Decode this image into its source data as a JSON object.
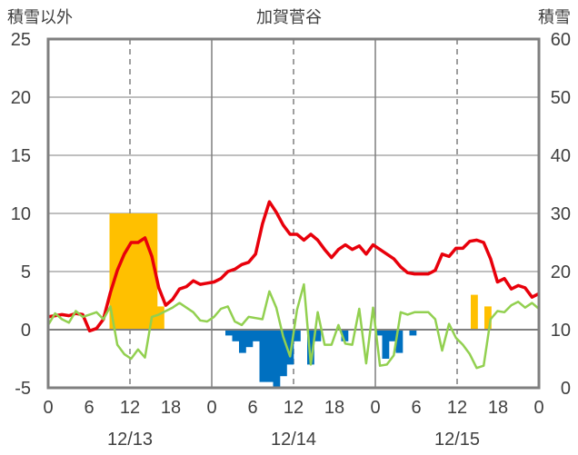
{
  "chart_data": {
    "type": "bar+line",
    "title": "加賀菅谷",
    "left_axis_label": "積雪以外",
    "right_axis_label": "積雪",
    "y_left": {
      "min": -5,
      "max": 25,
      "ticks": [
        -5,
        0,
        5,
        10,
        15,
        20,
        25
      ]
    },
    "y_right": {
      "min": 0,
      "max": 60,
      "ticks": [
        0,
        10,
        20,
        30,
        40,
        50,
        60
      ]
    },
    "x": {
      "hours_total": 72,
      "tick_labels": [
        "0",
        "6",
        "12",
        "18",
        "0",
        "6",
        "12",
        "18",
        "0",
        "6",
        "12",
        "18",
        "0"
      ]
    },
    "day_labels": [
      "12/13",
      "12/14",
      "12/15"
    ],
    "colors": {
      "red_line": "#e8000b",
      "green_line": "#92d050",
      "purple_line": "#7030a0",
      "orange_bar": "#ffc000",
      "blue_bar": "#0070c0",
      "frame": "#7f7f7f",
      "grid": "#7f7f7f"
    },
    "series": [
      {
        "type": "line",
        "color_key": "red_line",
        "axis": "left",
        "values": [
          1.1,
          1.2,
          1.3,
          1.2,
          1.4,
          1.3,
          -0.1,
          0.1,
          0.9,
          3.2,
          5.1,
          6.5,
          7.5,
          7.5,
          7.9,
          6.3,
          3.6,
          2.1,
          2.6,
          3.5,
          3.7,
          4.2,
          3.9,
          4.0,
          4.1,
          4.4,
          5.0,
          5.2,
          5.6,
          5.8,
          6.5,
          9.1,
          11.0,
          10.1,
          9.0,
          8.2,
          8.2,
          7.7,
          8.2,
          7.7,
          6.9,
          6.2,
          6.9,
          7.3,
          6.9,
          7.2,
          6.5,
          7.3,
          6.9,
          6.5,
          6.1,
          5.4,
          4.9,
          4.8,
          4.8,
          4.8,
          5.1,
          6.5,
          6.3,
          7.0,
          7.0,
          7.6,
          7.7,
          7.5,
          6.1,
          4.1,
          4.4,
          3.5,
          3.8,
          3.6,
          2.8,
          3.1
        ]
      },
      {
        "type": "line",
        "color_key": "green_line",
        "axis": "left",
        "values": [
          0.4,
          1.4,
          0.9,
          0.6,
          1.6,
          1.1,
          1.3,
          1.5,
          0.9,
          2.0,
          -1.3,
          -2.1,
          -2.5,
          -1.7,
          -2.4,
          1.1,
          1.3,
          1.6,
          1.9,
          2.3,
          1.9,
          1.5,
          0.8,
          0.7,
          1.1,
          1.8,
          2.0,
          0.7,
          0.4,
          1.1,
          1.0,
          0.9,
          3.3,
          1.9,
          -0.6,
          -2.3,
          1.7,
          3.9,
          -3.0,
          1.5,
          -1.3,
          -1.3,
          0.4,
          -1.2,
          -1.3,
          1.8,
          -2.9,
          1.9,
          -3.1,
          -3.0,
          -2.2,
          1.5,
          1.3,
          1.5,
          1.5,
          1.5,
          0.9,
          -1.8,
          0.5,
          -0.7,
          -1.3,
          -2.1,
          -3.3,
          -3.1,
          0.9,
          1.6,
          1.5,
          2.1,
          2.4,
          1.9,
          2.3,
          1.8
        ]
      },
      {
        "type": "line",
        "color_key": "purple_line",
        "axis": "left",
        "values": [
          -5,
          -5,
          -5,
          -5,
          -5,
          -5,
          -5,
          -5,
          -5,
          -5,
          -5,
          -5,
          -5,
          -5,
          -5,
          -5,
          -5,
          -5,
          -5,
          -5,
          -5,
          -5,
          -5,
          -5,
          -5,
          -5,
          -5,
          -5,
          -5,
          -5,
          -5,
          -5,
          -5,
          -5,
          -5,
          -5,
          -5,
          -5,
          -5,
          -5,
          -5,
          -5,
          -5,
          -5,
          -5,
          -5,
          -5,
          -5,
          -5,
          -5,
          -5,
          -5,
          -5,
          -5,
          -5,
          -5,
          -5,
          -5,
          -5,
          -5,
          -5,
          -5,
          -5,
          -5,
          -5,
          -5,
          -5,
          -5,
          -5,
          -5,
          -5,
          -5
        ]
      },
      {
        "type": "bar",
        "color_key": "orange_bar",
        "axis": "left",
        "values": [
          0,
          0,
          0,
          0,
          0,
          0,
          0,
          0,
          0,
          10,
          10,
          10,
          10,
          10,
          10,
          10,
          2,
          0,
          0,
          0,
          0,
          0,
          0,
          0,
          0,
          0,
          0,
          0,
          0,
          0,
          0,
          0,
          0,
          0,
          0,
          0,
          0,
          0,
          0,
          0,
          0,
          0,
          0,
          0,
          0,
          0,
          0,
          0,
          0,
          0,
          0,
          0,
          0,
          0,
          0,
          0,
          0,
          0,
          0,
          0,
          0,
          0,
          3,
          0,
          2,
          0,
          0,
          0,
          0,
          0,
          0,
          0
        ]
      },
      {
        "type": "bar",
        "color_key": "blue_bar",
        "axis": "left",
        "values": [
          0,
          0,
          0,
          0,
          0,
          0,
          0,
          0,
          0,
          0,
          0,
          0,
          0,
          0,
          0,
          0,
          0,
          0,
          0,
          0,
          0,
          0,
          0,
          0,
          0,
          0,
          -0.5,
          -1,
          -2,
          -1.5,
          -1,
          -4.5,
          -4.5,
          -5,
          -4,
          -3,
          -1,
          0,
          -3,
          -1,
          0,
          0,
          0,
          -1,
          0,
          0,
          0,
          0,
          -0.5,
          -2.5,
          -1,
          -2,
          0,
          -0.5,
          0,
          0,
          0,
          0,
          0,
          0,
          0,
          0,
          0,
          0,
          0,
          0,
          0,
          0,
          0,
          0,
          0,
          0
        ]
      }
    ]
  }
}
